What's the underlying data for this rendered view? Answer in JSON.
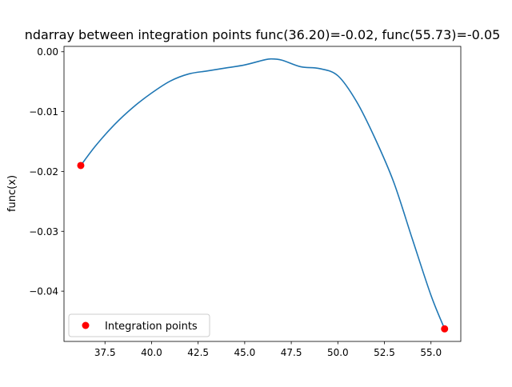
{
  "chart_data": {
    "type": "line",
    "title": "ndarray between integration points func(36.20)=-0.02, func(55.73)=-0.05",
    "xlabel": "",
    "ylabel": "func(x)",
    "xlim": [
      35.3,
      56.6
    ],
    "ylim": [
      -0.0484,
      0.0009
    ],
    "xticks": [
      37.5,
      40.0,
      42.5,
      45.0,
      47.5,
      50.0,
      52.5,
      55.0
    ],
    "xtick_labels": [
      "37.5",
      "40.0",
      "42.5",
      "45.0",
      "47.5",
      "50.0",
      "52.5",
      "55.0"
    ],
    "yticks": [
      0.0,
      -0.01,
      -0.02,
      -0.03,
      -0.04
    ],
    "ytick_labels": [
      "0.00",
      "−0.01",
      "−0.02",
      "−0.03",
      "−0.04"
    ],
    "grid": false,
    "legend": {
      "position": "lower-left",
      "entries": [
        "Integration points"
      ]
    },
    "series": [
      {
        "kind": "line",
        "color": "#1f77b4",
        "x": [
          36.2,
          37.0,
          38.0,
          39.0,
          40.0,
          41.0,
          42.0,
          43.0,
          44.0,
          45.0,
          46.0,
          46.4,
          47.0,
          48.0,
          49.0,
          50.0,
          51.0,
          52.0,
          53.0,
          54.0,
          55.0,
          55.73
        ],
        "y": [
          -0.019,
          -0.0157,
          -0.0122,
          -0.0093,
          -0.0069,
          -0.0049,
          -0.0037,
          -0.0032,
          -0.0027,
          -0.0022,
          -0.0014,
          -0.0012,
          -0.0014,
          -0.0025,
          -0.0028,
          -0.004,
          -0.0083,
          -0.0145,
          -0.0218,
          -0.0313,
          -0.0407,
          -0.0463
        ]
      },
      {
        "kind": "scatter",
        "name": "Integration points",
        "color": "#ff0000",
        "x": [
          36.2,
          55.73
        ],
        "y": [
          -0.019,
          -0.0463
        ]
      }
    ]
  }
}
